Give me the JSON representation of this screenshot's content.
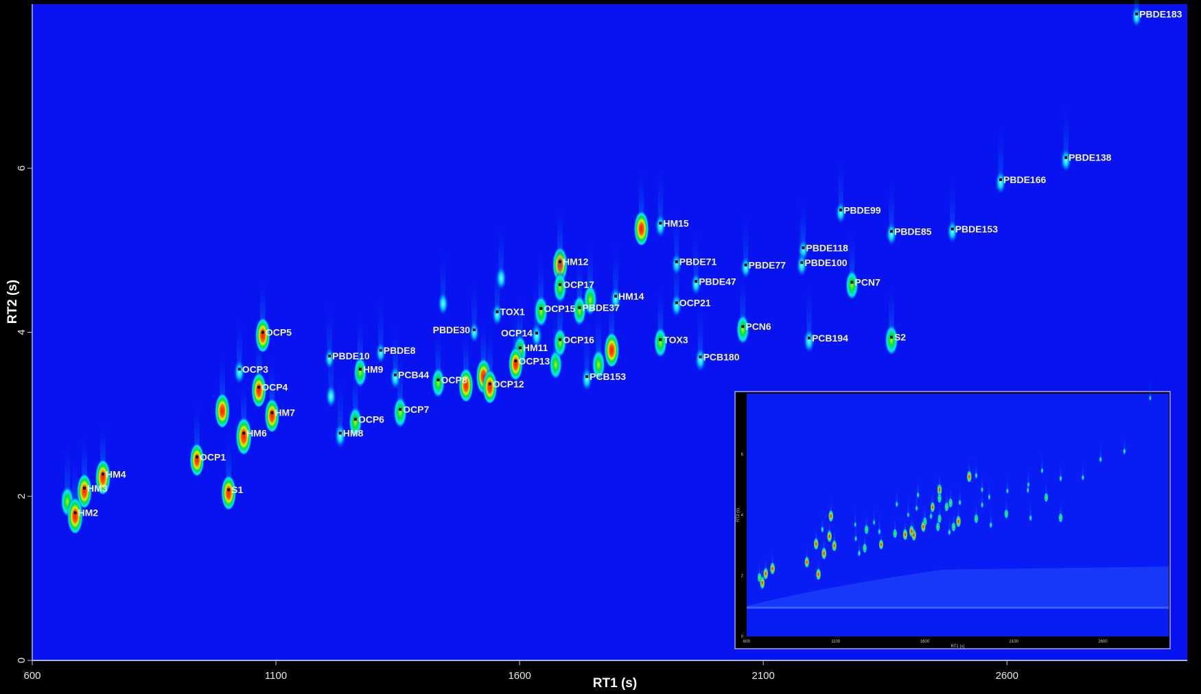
{
  "chart_data": {
    "type": "heatmap",
    "subtype": "GCxGC contour chromatogram",
    "xlabel": "RT1 (s)",
    "ylabel": "RT2 (s)",
    "xlim": [
      600,
      2970
    ],
    "ylim": [
      0,
      8
    ],
    "x_ticks": [
      "600",
      "1100",
      "1600",
      "2100",
      "2600"
    ],
    "y_ticks": [
      "0",
      "2",
      "4",
      "6"
    ],
    "grid": false,
    "colormap": [
      "#0814f0",
      "#00e5ff",
      "#00e040",
      "#f0f000",
      "#ff2000"
    ],
    "background_color": "#0814f0",
    "labeled_peaks": [
      {
        "name": "HM2",
        "rt1": 688,
        "rt2": 1.8,
        "intensity": 0.95
      },
      {
        "name": "HM3",
        "rt1": 707,
        "rt2": 2.1,
        "intensity": 0.85
      },
      {
        "name": "HM4",
        "rt1": 745,
        "rt2": 2.27,
        "intensity": 0.9
      },
      {
        "name": "OCP1",
        "rt1": 938,
        "rt2": 2.48,
        "intensity": 0.75
      },
      {
        "name": "S1",
        "rt1": 1003,
        "rt2": 2.08,
        "intensity": 0.85
      },
      {
        "name": "HM6",
        "rt1": 1034,
        "rt2": 2.77,
        "intensity": 1.0
      },
      {
        "name": "OCP3",
        "rt1": 1025,
        "rt2": 3.55,
        "intensity": 0.3
      },
      {
        "name": "OCP4",
        "rt1": 1065,
        "rt2": 3.33,
        "intensity": 0.85
      },
      {
        "name": "HM7",
        "rt1": 1092,
        "rt2": 3.02,
        "intensity": 0.8
      },
      {
        "name": "OCP5",
        "rt1": 1073,
        "rt2": 4.0,
        "intensity": 0.85
      },
      {
        "name": "PBDE10",
        "rt1": 1210,
        "rt2": 3.71,
        "intensity": 0.1
      },
      {
        "name": "HM9",
        "rt1": 1273,
        "rt2": 3.55,
        "intensity": 0.6
      },
      {
        "name": "HM8",
        "rt1": 1232,
        "rt2": 2.77,
        "intensity": 0.3
      },
      {
        "name": "OCP6",
        "rt1": 1263,
        "rt2": 2.94,
        "intensity": 0.6
      },
      {
        "name": "PBDE8",
        "rt1": 1315,
        "rt2": 3.78,
        "intensity": 0.1
      },
      {
        "name": "PCB44",
        "rt1": 1345,
        "rt2": 3.48,
        "intensity": 0.25
      },
      {
        "name": "OCP7",
        "rt1": 1355,
        "rt2": 3.06,
        "intensity": 0.65
      },
      {
        "name": "OCP8",
        "rt1": 1433,
        "rt2": 3.42,
        "intensity": 0.6
      },
      {
        "name": "PBDE30",
        "rt1": 1507,
        "rt2": 4.03,
        "intensity": 0.1
      },
      {
        "name": "OCP12",
        "rt1": 1539,
        "rt2": 3.37,
        "intensity": 0.8
      },
      {
        "name": "TOX1",
        "rt1": 1554,
        "rt2": 4.25,
        "intensity": 0.2
      },
      {
        "name": "OCP14",
        "rt1": 1635,
        "rt2": 3.99,
        "intensity": 0.3
      },
      {
        "name": "HM11",
        "rt1": 1601,
        "rt2": 3.81,
        "intensity": 0.6
      },
      {
        "name": "OCP13",
        "rt1": 1592,
        "rt2": 3.65,
        "intensity": 0.75
      },
      {
        "name": "OCP15",
        "rt1": 1644,
        "rt2": 4.29,
        "intensity": 0.65
      },
      {
        "name": "HM12",
        "rt1": 1683,
        "rt2": 4.86,
        "intensity": 0.85
      },
      {
        "name": "OCP17",
        "rt1": 1683,
        "rt2": 4.58,
        "intensity": 0.6
      },
      {
        "name": "PBDE37",
        "rt1": 1723,
        "rt2": 4.3,
        "intensity": 0.6
      },
      {
        "name": "OCP16",
        "rt1": 1683,
        "rt2": 3.91,
        "intensity": 0.55
      },
      {
        "name": "PCB153",
        "rt1": 1738,
        "rt2": 3.46,
        "intensity": 0.25
      },
      {
        "name": "HM14",
        "rt1": 1797,
        "rt2": 4.44,
        "intensity": 0.25
      },
      {
        "name": "HM15",
        "rt1": 1889,
        "rt2": 5.33,
        "intensity": 0.25
      },
      {
        "name": "TOX3",
        "rt1": 1889,
        "rt2": 3.91,
        "intensity": 0.6
      },
      {
        "name": "PBDE71",
        "rt1": 1922,
        "rt2": 4.86,
        "intensity": 0.15
      },
      {
        "name": "OCP21",
        "rt1": 1922,
        "rt2": 4.36,
        "intensity": 0.25
      },
      {
        "name": "PBDE47",
        "rt1": 1962,
        "rt2": 4.62,
        "intensity": 0.15
      },
      {
        "name": "PCB180",
        "rt1": 1971,
        "rt2": 3.7,
        "intensity": 0.3
      },
      {
        "name": "PBDE77",
        "rt1": 2064,
        "rt2": 4.82,
        "intensity": 0.15
      },
      {
        "name": "PCN6",
        "rt1": 2058,
        "rt2": 4.07,
        "intensity": 0.55
      },
      {
        "name": "PBDE118",
        "rt1": 2182,
        "rt2": 5.03,
        "intensity": 0.15
      },
      {
        "name": "PBDE100",
        "rt1": 2179,
        "rt2": 4.85,
        "intensity": 0.2
      },
      {
        "name": "PBDE99",
        "rt1": 2259,
        "rt2": 5.49,
        "intensity": 0.15
      },
      {
        "name": "PCN7",
        "rt1": 2282,
        "rt2": 4.61,
        "intensity": 0.55
      },
      {
        "name": "PCB194",
        "rt1": 2194,
        "rt2": 3.93,
        "intensity": 0.3
      },
      {
        "name": "S2",
        "rt1": 2363,
        "rt2": 3.94,
        "intensity": 0.6
      },
      {
        "name": "PBDE85",
        "rt1": 2363,
        "rt2": 5.23,
        "intensity": 0.25
      },
      {
        "name": "PBDE153",
        "rt1": 2488,
        "rt2": 5.26,
        "intensity": 0.2
      },
      {
        "name": "PBDE166",
        "rt1": 2587,
        "rt2": 5.86,
        "intensity": 0.25
      },
      {
        "name": "PBDE138",
        "rt1": 2721,
        "rt2": 6.13,
        "intensity": 0.25
      },
      {
        "name": "PBDE183",
        "rt1": 2866,
        "rt2": 7.88,
        "intensity": 0.1
      }
    ],
    "unlabeled_peaks": [
      {
        "rt1": 672,
        "rt2": 1.97,
        "intensity": 0.6
      },
      {
        "rt1": 990,
        "rt2": 3.08,
        "intensity": 0.85
      },
      {
        "rt1": 1213,
        "rt2": 3.25,
        "intensity": 0.2
      },
      {
        "rt1": 1443,
        "rt2": 4.38,
        "intensity": 0.2
      },
      {
        "rt1": 1490,
        "rt2": 3.39,
        "intensity": 0.8
      },
      {
        "rt1": 1526,
        "rt2": 3.5,
        "intensity": 0.85
      },
      {
        "rt1": 1562,
        "rt2": 4.69,
        "intensity": 0.25
      },
      {
        "rt1": 1674,
        "rt2": 3.64,
        "intensity": 0.55
      },
      {
        "rt1": 1745,
        "rt2": 4.43,
        "intensity": 0.6
      },
      {
        "rt1": 1762,
        "rt2": 3.64,
        "intensity": 0.6
      },
      {
        "rt1": 1789,
        "rt2": 3.82,
        "intensity": 0.85
      },
      {
        "rt1": 1850,
        "rt2": 5.3,
        "intensity": 0.85
      }
    ],
    "inset": {
      "description_visible": "full-range chromatogram overview",
      "x_ticks": [
        "600",
        "1100",
        "1600",
        "2100",
        "2600"
      ],
      "y_ticks": [
        "0",
        "2",
        "4",
        "6"
      ],
      "xlabel": "RT1 (s)",
      "ylabel": "RT2 (s)"
    }
  }
}
